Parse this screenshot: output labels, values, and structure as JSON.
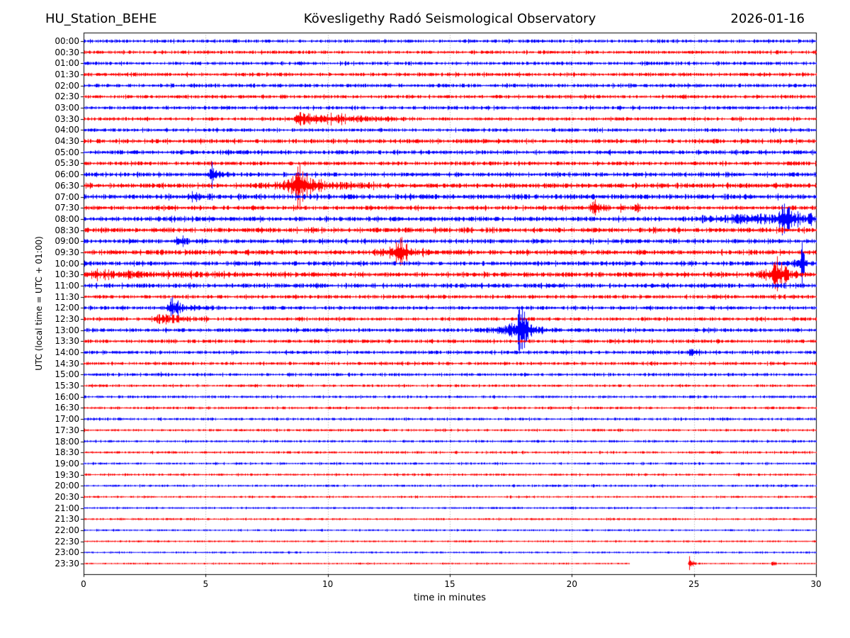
{
  "chart_data": {
    "type": "line",
    "subtype": "helicorder",
    "title": {
      "station": "HU_Station_BEHE",
      "observatory": "Kövesligethy Radó Seismological Observatory",
      "date": "2026-01-16"
    },
    "xlabel": "time in minutes",
    "ylabel": "UTC (local time = UTC + 01:00)",
    "x_range": [
      0,
      30
    ],
    "x_ticks": [
      0,
      5,
      10,
      15,
      20,
      25,
      30
    ],
    "grid": "vertical dotted every 5 minutes",
    "colors": {
      "even_trace": "#0000ff",
      "odd_trace": "#ff0000",
      "grid": "#888888",
      "axis": "#000000"
    },
    "rows": [
      {
        "label": "00:00",
        "amp": 1.8,
        "events": []
      },
      {
        "label": "00:30",
        "amp": 1.8,
        "events": []
      },
      {
        "label": "01:00",
        "amp": 1.8,
        "events": []
      },
      {
        "label": "01:30",
        "amp": 2.0,
        "events": []
      },
      {
        "label": "02:00",
        "amp": 2.0,
        "events": []
      },
      {
        "label": "02:30",
        "amp": 1.9,
        "events": []
      },
      {
        "label": "03:00",
        "amp": 1.9,
        "events": []
      },
      {
        "label": "03:30",
        "amp": 1.9,
        "events": [
          [
            8.45,
            8.9,
            13.5,
            7
          ]
        ]
      },
      {
        "label": "04:00",
        "amp": 1.9,
        "events": []
      },
      {
        "label": "04:30",
        "amp": 2.3,
        "events": []
      },
      {
        "label": "05:00",
        "amp": 2.3,
        "events": []
      },
      {
        "label": "05:30",
        "amp": 2.1,
        "events": []
      },
      {
        "label": "06:00",
        "amp": 2.3,
        "events": [
          [
            4.95,
            5.25,
            6.2,
            8
          ]
        ]
      },
      {
        "label": "06:30",
        "amp": 2.6,
        "events": [
          [
            6.8,
            8.6,
            13.0,
            5
          ],
          [
            8.35,
            8.75,
            9.8,
            18
          ]
        ]
      },
      {
        "label": "07:00",
        "amp": 2.7,
        "events": [
          [
            4.1,
            4.45,
            5.2,
            5
          ]
        ]
      },
      {
        "label": "07:30",
        "amp": 2.3,
        "events": [
          [
            20.6,
            20.95,
            21.6,
            8
          ],
          [
            21.8,
            22.0,
            22.3,
            4
          ],
          [
            22.4,
            22.65,
            23.0,
            4
          ]
        ]
      },
      {
        "label": "08:00",
        "amp": 2.6,
        "events": [
          [
            24.4,
            27.5,
            30.0,
            5
          ],
          [
            28.35,
            28.65,
            29.4,
            20
          ],
          [
            29.2,
            29.8,
            30.0,
            4
          ]
        ]
      },
      {
        "label": "08:30",
        "amp": 2.6,
        "events": []
      },
      {
        "label": "09:00",
        "amp": 2.3,
        "events": [
          [
            3.6,
            3.9,
            4.5,
            7
          ]
        ]
      },
      {
        "label": "09:30",
        "amp": 2.6,
        "events": [
          [
            11.6,
            12.9,
            14.2,
            7
          ],
          [
            12.75,
            13.0,
            13.5,
            13
          ]
        ]
      },
      {
        "label": "10:00",
        "amp": 2.3,
        "events": [
          [
            28.8,
            29.4,
            30.0,
            7
          ],
          [
            29.25,
            29.38,
            29.6,
            15
          ]
        ]
      },
      {
        "label": "10:30",
        "amp": 2.6,
        "events": [
          [
            0.0,
            0.1,
            10.0,
            2.5
          ],
          [
            27.4,
            28.3,
            29.5,
            10
          ],
          [
            28.1,
            28.4,
            28.9,
            16
          ]
        ]
      },
      {
        "label": "11:00",
        "amp": 2.4,
        "events": []
      },
      {
        "label": "11:30",
        "amp": 2.0,
        "events": []
      },
      {
        "label": "12:00",
        "amp": 2.0,
        "events": [
          [
            3.2,
            3.55,
            5.6,
            6
          ],
          [
            3.45,
            3.55,
            3.75,
            15
          ]
        ]
      },
      {
        "label": "12:30",
        "amp": 1.9,
        "events": [
          [
            2.6,
            3.2,
            5.4,
            5
          ]
        ]
      },
      {
        "label": "13:00",
        "amp": 2.1,
        "events": [
          [
            16.0,
            17.9,
            19.6,
            8
          ],
          [
            17.7,
            17.92,
            18.35,
            30
          ]
        ]
      },
      {
        "label": "13:30",
        "amp": 1.9,
        "events": []
      },
      {
        "label": "14:00",
        "amp": 1.9,
        "events": [
          [
            24.7,
            24.92,
            25.3,
            6
          ]
        ]
      },
      {
        "label": "14:30",
        "amp": 1.7,
        "events": []
      },
      {
        "label": "15:00",
        "amp": 1.6,
        "events": [
          [
            3.0,
            3.2,
            3.5,
            3
          ]
        ]
      },
      {
        "label": "15:30",
        "amp": 1.4,
        "events": []
      },
      {
        "label": "16:00",
        "amp": 1.4,
        "events": []
      },
      {
        "label": "16:30",
        "amp": 1.4,
        "events": []
      },
      {
        "label": "17:00",
        "amp": 1.4,
        "events": []
      },
      {
        "label": "17:30",
        "amp": 1.3,
        "events": []
      },
      {
        "label": "18:00",
        "amp": 1.3,
        "events": []
      },
      {
        "label": "18:30",
        "amp": 1.3,
        "events": []
      },
      {
        "label": "19:00",
        "amp": 1.2,
        "events": []
      },
      {
        "label": "19:30",
        "amp": 1.2,
        "events": []
      },
      {
        "label": "20:00",
        "amp": 1.2,
        "events": []
      },
      {
        "label": "20:30",
        "amp": 1.1,
        "events": []
      },
      {
        "label": "21:00",
        "amp": 1.1,
        "events": []
      },
      {
        "label": "21:30",
        "amp": 1.1,
        "events": []
      },
      {
        "label": "22:00",
        "amp": 1.0,
        "events": []
      },
      {
        "label": "22:30",
        "amp": 1.0,
        "events": []
      },
      {
        "label": "23:00",
        "amp": 1.0,
        "events": []
      },
      {
        "label": "23:30",
        "amp": 0.9,
        "events": [
          [
            24.74,
            24.8,
            25.1,
            12
          ],
          [
            28.15,
            28.2,
            28.35,
            5
          ]
        ],
        "gaps": [
          [
            22.35,
            24.72
          ]
        ]
      }
    ]
  }
}
